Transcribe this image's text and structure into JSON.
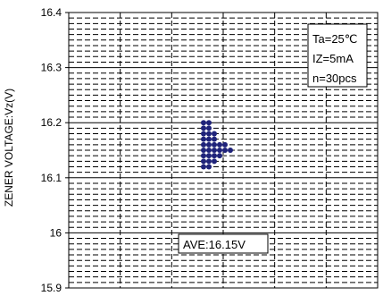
{
  "chart_data": {
    "type": "scatter",
    "title": "",
    "xlabel": "",
    "ylabel": "ZENER VOLTAGE:Vz(V)",
    "ylim": [
      15.9,
      16.4
    ],
    "y_ticks": [
      15.9,
      16,
      16.1,
      16.2,
      16.3,
      16.4
    ],
    "y_tick_labels": [
      "15.9",
      "16",
      "16.1",
      "16.2",
      "16.3",
      "16.4"
    ],
    "grid": true,
    "conditions": [
      "Ta=25℃",
      "IZ=5mA",
      "n=30pcs"
    ],
    "average_label": "AVE:16.15V",
    "points": [
      {
        "x": 0,
        "y": 16.12
      },
      {
        "x": 0,
        "y": 16.13
      },
      {
        "x": 0,
        "y": 16.14
      },
      {
        "x": 0,
        "y": 16.15
      },
      {
        "x": 0,
        "y": 16.16
      },
      {
        "x": 0,
        "y": 16.17
      },
      {
        "x": 0,
        "y": 16.18
      },
      {
        "x": 0,
        "y": 16.19
      },
      {
        "x": 0,
        "y": 16.2
      },
      {
        "x": 1,
        "y": 16.12
      },
      {
        "x": 1,
        "y": 16.13
      },
      {
        "x": 1,
        "y": 16.14
      },
      {
        "x": 1,
        "y": 16.15
      },
      {
        "x": 1,
        "y": 16.16
      },
      {
        "x": 1,
        "y": 16.17
      },
      {
        "x": 1,
        "y": 16.18
      },
      {
        "x": 1,
        "y": 16.19
      },
      {
        "x": 1,
        "y": 16.2
      },
      {
        "x": 2,
        "y": 16.13
      },
      {
        "x": 2,
        "y": 16.14
      },
      {
        "x": 2,
        "y": 16.15
      },
      {
        "x": 2,
        "y": 16.16
      },
      {
        "x": 2,
        "y": 16.17
      },
      {
        "x": 2,
        "y": 16.18
      },
      {
        "x": 3,
        "y": 16.14
      },
      {
        "x": 3,
        "y": 16.15
      },
      {
        "x": 3,
        "y": 16.16
      },
      {
        "x": 4,
        "y": 16.15
      },
      {
        "x": 4,
        "y": 16.16
      },
      {
        "x": 5,
        "y": 16.15
      }
    ],
    "point_color": "#1f237a",
    "grid_color": "#000000"
  }
}
